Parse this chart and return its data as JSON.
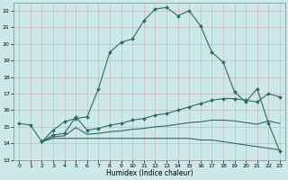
{
  "xlabel": "Humidex (Indice chaleur)",
  "bg_color": "#cce8e8",
  "grid_color": "#aacccc",
  "line_color": "#2d6b5e",
  "xlim": [
    -0.5,
    23.5
  ],
  "ylim": [
    13,
    22.5
  ],
  "yticks": [
    13,
    14,
    15,
    16,
    17,
    18,
    19,
    20,
    21,
    22
  ],
  "xticks": [
    0,
    1,
    2,
    3,
    4,
    5,
    6,
    7,
    8,
    9,
    10,
    11,
    12,
    13,
    14,
    15,
    16,
    17,
    18,
    19,
    20,
    21,
    22,
    23
  ],
  "line1_x": [
    0,
    1,
    2,
    3,
    4,
    5,
    6,
    7,
    8,
    9,
    10,
    11,
    12,
    13,
    14,
    15,
    16,
    17,
    18,
    19,
    20,
    21,
    22,
    23
  ],
  "line1_y": [
    15.2,
    15.1,
    14.1,
    14.8,
    15.3,
    15.5,
    15.6,
    17.3,
    19.5,
    20.1,
    20.3,
    21.4,
    22.1,
    22.2,
    21.7,
    22.0,
    21.1,
    19.5,
    18.9,
    17.1,
    16.5,
    17.3,
    15.2,
    13.5
  ],
  "line2_x": [
    2,
    3,
    4,
    5,
    6,
    7,
    8,
    9,
    10,
    11,
    12,
    13,
    14,
    15,
    16,
    17,
    18,
    19,
    20,
    21,
    22,
    23
  ],
  "line2_y": [
    14.1,
    14.5,
    14.6,
    15.6,
    14.8,
    14.9,
    15.1,
    15.2,
    15.4,
    15.5,
    15.7,
    15.8,
    16.0,
    16.2,
    16.4,
    16.6,
    16.7,
    16.7,
    16.6,
    16.5,
    17.0,
    16.8
  ],
  "line3_x": [
    2,
    3,
    4,
    5,
    6,
    7,
    8,
    9,
    10,
    11,
    12,
    13,
    14,
    15,
    16,
    17,
    18,
    19,
    20,
    21,
    22,
    23
  ],
  "line3_y": [
    14.1,
    14.3,
    14.3,
    14.3,
    14.3,
    14.3,
    14.3,
    14.3,
    14.3,
    14.3,
    14.3,
    14.3,
    14.3,
    14.3,
    14.2,
    14.2,
    14.1,
    14.0,
    13.9,
    13.8,
    13.7,
    13.6
  ],
  "line4_x": [
    2,
    3,
    4,
    5,
    6,
    7,
    8,
    9,
    10,
    11,
    12,
    13,
    14,
    15,
    16,
    17,
    18,
    19,
    20,
    21,
    22,
    23
  ],
  "line4_y": [
    14.1,
    14.4,
    14.45,
    14.95,
    14.55,
    14.6,
    14.7,
    14.75,
    14.85,
    14.9,
    15.0,
    15.05,
    15.15,
    15.25,
    15.3,
    15.4,
    15.4,
    15.35,
    15.25,
    15.15,
    15.35,
    15.2
  ]
}
